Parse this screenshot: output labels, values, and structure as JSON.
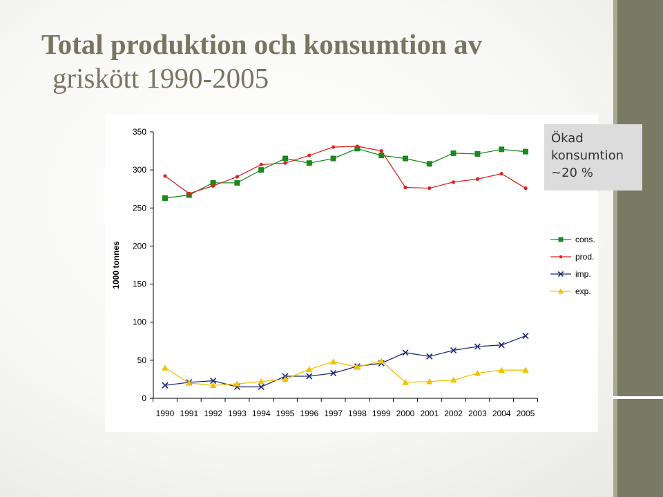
{
  "slide": {
    "title_line1": "Total produktion och konsumtion av",
    "title_line2": "griskött 1990-2005"
  },
  "callout": {
    "line1": "Ökad",
    "line2": "konsumtion",
    "line3": "~20 %",
    "background": "#dcdcdc"
  },
  "colors": {
    "band": "#787a63",
    "title": "#7a7560"
  },
  "chart_data": {
    "type": "line",
    "ylabel": "1000 tonnes",
    "xlabel": "",
    "ylim": [
      0,
      350
    ],
    "yticks": [
      0,
      50,
      100,
      150,
      200,
      250,
      300,
      350
    ],
    "grid": false,
    "legend_position": "right",
    "categories": [
      "1990",
      "1991",
      "1992",
      "1993",
      "1994",
      "1995",
      "1996",
      "1997",
      "1998",
      "1999",
      "2000",
      "2001",
      "2002",
      "2003",
      "2004",
      "2005"
    ],
    "series": [
      {
        "name": "cons.",
        "color": "#1a8a1a",
        "marker": "square",
        "values": [
          263,
          267,
          283,
          283,
          300,
          315,
          309,
          315,
          328,
          319,
          315,
          308,
          322,
          321,
          327,
          324
        ]
      },
      {
        "name": "prod.",
        "color": "#e02020",
        "marker": "circle",
        "values": [
          292,
          269,
          279,
          291,
          307,
          309,
          319,
          330,
          331,
          325,
          277,
          276,
          284,
          288,
          295,
          276
        ]
      },
      {
        "name": "imp.",
        "color": "#1a2a7a",
        "marker": "x",
        "values": [
          17,
          21,
          23,
          15,
          15,
          29,
          29,
          33,
          42,
          46,
          60,
          55,
          63,
          68,
          70,
          82
        ]
      },
      {
        "name": "exp.",
        "color": "#f2c200",
        "marker": "triangle",
        "values": [
          40,
          20,
          17,
          19,
          22,
          25,
          38,
          48,
          41,
          49,
          21,
          22,
          24,
          33,
          37,
          37
        ]
      }
    ]
  }
}
